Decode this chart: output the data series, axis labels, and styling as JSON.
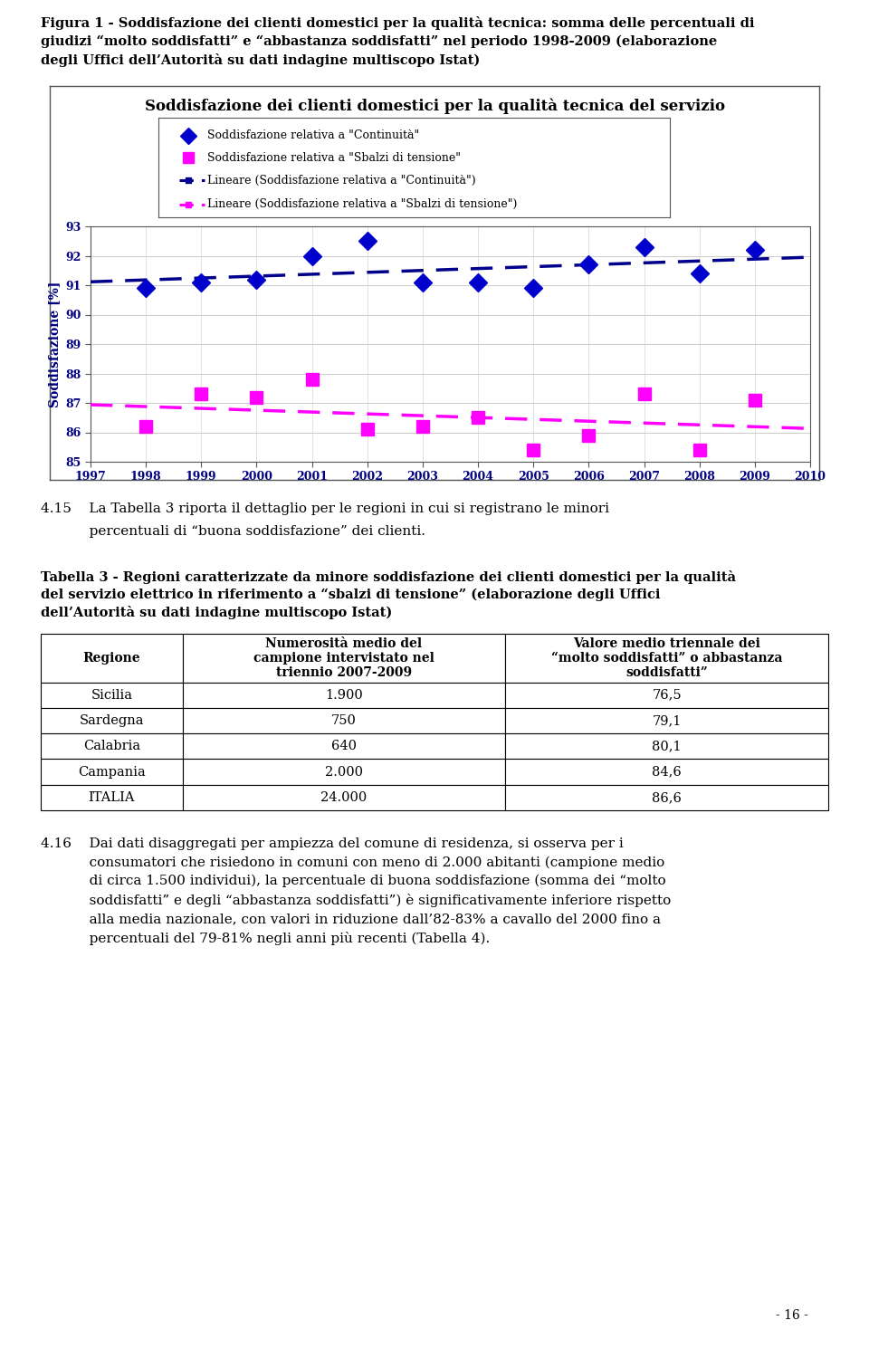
{
  "fig_caption_lines": [
    "Figura 1 - Soddisfazione dei clienti domestici per la qualità tecnica: somma delle percentuali di",
    "giudizi “molto soddisfatti” e “abbastanza soddisfatti” nel periodo 1998-2009 (elaborazione",
    "degli Uffici dell’Autorità su dati indagine multiscopo Istat)"
  ],
  "chart_title": "Soddisfazione dei clienti domestici per la qualità tecnica del servizio",
  "legend_entries": [
    "Soddisfazione relativa a \"Continuità\"",
    "Soddisfazione relativa a \"Sbalzi di tensione\"",
    "Lineare (Soddisfazione relativa a \"Continuità\")",
    "Lineare (Soddisfazione relativa a \"Sbalzi di tensione\")"
  ],
  "years": [
    1998,
    1999,
    2000,
    2001,
    2002,
    2003,
    2004,
    2005,
    2006,
    2007,
    2008,
    2009
  ],
  "continuita_values": [
    90.9,
    91.1,
    91.2,
    92.0,
    92.5,
    91.1,
    91.1,
    90.9,
    91.7,
    92.3,
    91.4,
    92.2
  ],
  "sbalzi_values": [
    86.2,
    87.3,
    87.2,
    87.8,
    86.1,
    86.2,
    86.5,
    85.4,
    85.9,
    87.3,
    85.4,
    87.1
  ],
  "continuita_color": "#0000CD",
  "sbalzi_color": "#FF00FF",
  "continuita_trend_color": "#00008B",
  "sbalzi_trend_color": "#FF00FF",
  "ylabel": "Soddisfazione [%]",
  "xlim": [
    1997,
    2010
  ],
  "ylim": [
    85,
    93
  ],
  "yticks": [
    85,
    86,
    87,
    88,
    89,
    90,
    91,
    92,
    93
  ],
  "xticks": [
    1997,
    1998,
    1999,
    2000,
    2001,
    2002,
    2003,
    2004,
    2005,
    2006,
    2007,
    2008,
    2009,
    2010
  ],
  "para415_line1": "4.15    La Tabella 3 riporta il dettaglio per le regioni in cui si registrano le minori",
  "para415_line2": "           percentuali di “buona soddisfazione” dei clienti.",
  "table3_caption_lines": [
    "Tabella 3 - Regioni caratterizzate da minore soddisfazione dei clienti domestici per la qualità",
    "del servizio elettrico in riferimento a “sbalzi di tensione” (elaborazione degli Uffici",
    "dell’Autorità su dati indagine multiscopo Istat)"
  ],
  "table3_col1_header": "Regione",
  "table3_col2_header": "Numerosità medio del\ncampione intervistato nel\ntriennio 2007-2009",
  "table3_col3_header": "Valore medio triennale dei\n“molto soddisfatti” o abbastanza\nsoddisfatti”",
  "table3_rows": [
    [
      "Sicilia",
      "1.900",
      "76,5"
    ],
    [
      "Sardegna",
      "750",
      "79,1"
    ],
    [
      "Calabria",
      "640",
      "80,1"
    ],
    [
      "Campania",
      "2.000",
      "84,6"
    ],
    [
      "ITALIA",
      "24.000",
      "86,6"
    ]
  ],
  "para416_lines": [
    "4.16    Dai dati disaggregati per ampiezza del comune di residenza, si osserva per i",
    "           consumatori che risiedono in comuni con meno di 2.000 abitanti (campione medio",
    "           di circa 1.500 individui), la percentuale di buona soddisfazione (somma dei “molto",
    "           soddisfatti” e degli “abbastanza soddisfatti”) è significativamente inferiore rispetto",
    "           alla media nazionale, con valori in riduzione dall’82-83% a cavallo del 2000 fino a",
    "           percentuali del 79-81% negli anni più recenti (Tabella 4)."
  ],
  "page_number": "- 16 -",
  "background_color": "#ffffff"
}
